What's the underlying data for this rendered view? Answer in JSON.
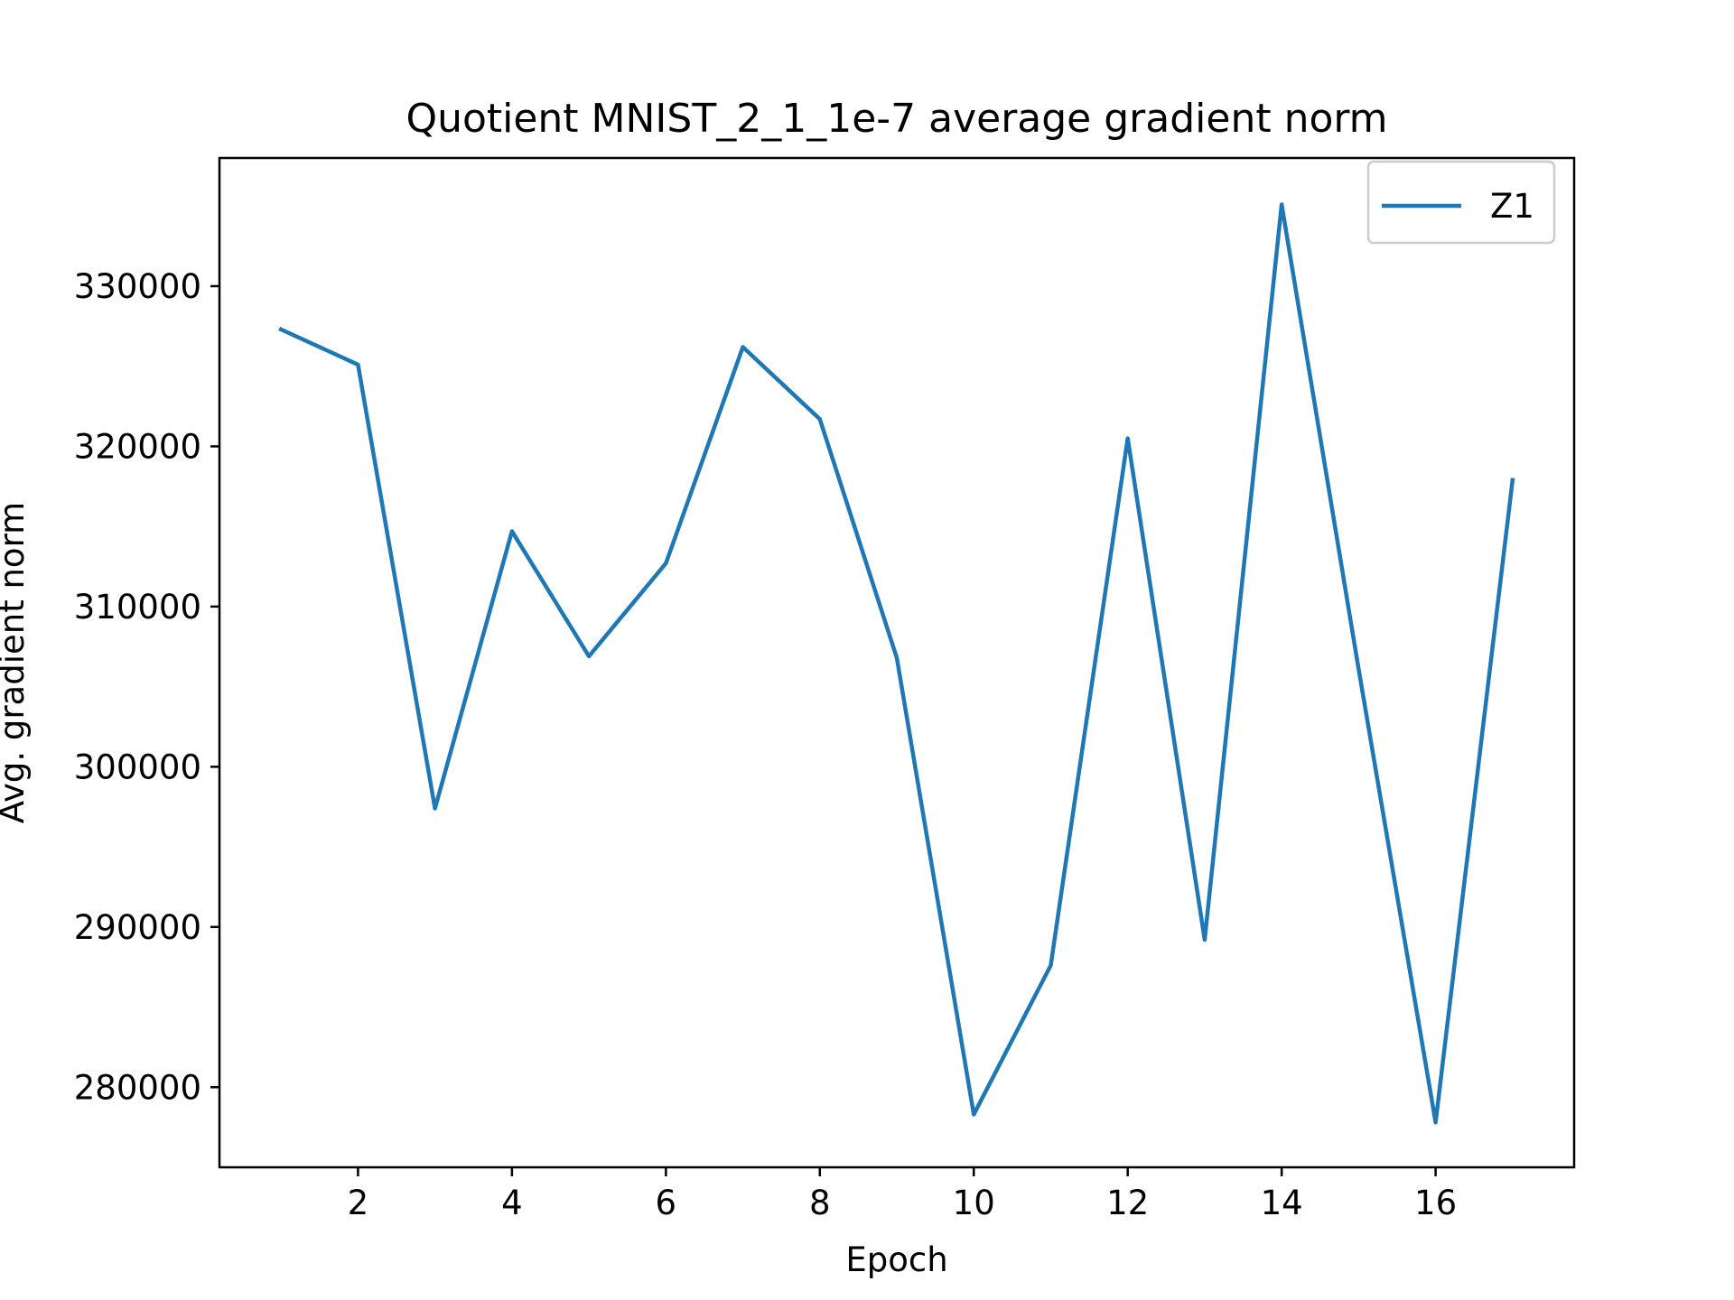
{
  "chart_data": {
    "type": "line",
    "title": "Quotient MNIST_2_1_1e-7 average gradient norm",
    "xlabel": "Epoch",
    "ylabel": "Avg. gradient norm",
    "xlim": [
      0.2,
      17.8
    ],
    "ylim": [
      275000,
      338000
    ],
    "x_ticks": [
      2,
      4,
      6,
      8,
      10,
      12,
      14,
      16
    ],
    "y_ticks": [
      280000,
      290000,
      300000,
      310000,
      320000,
      330000
    ],
    "x_tick_labels": [
      "2",
      "4",
      "6",
      "8",
      "10",
      "12",
      "14",
      "16"
    ],
    "y_tick_labels": [
      "280000",
      "290000",
      "300000",
      "310000",
      "320000",
      "330000"
    ],
    "grid": false,
    "legend_position": "top-right",
    "series": [
      {
        "name": "Z1",
        "color": "#1f77b4",
        "x": [
          1,
          2,
          3,
          4,
          5,
          6,
          7,
          8,
          9,
          10,
          11,
          12,
          13,
          14,
          15,
          16,
          17
        ],
        "values": [
          327300,
          325100,
          297400,
          314700,
          306900,
          312700,
          326200,
          321700,
          306800,
          278300,
          287600,
          320500,
          289200,
          335100,
          306100,
          277800,
          317900
        ]
      }
    ]
  }
}
